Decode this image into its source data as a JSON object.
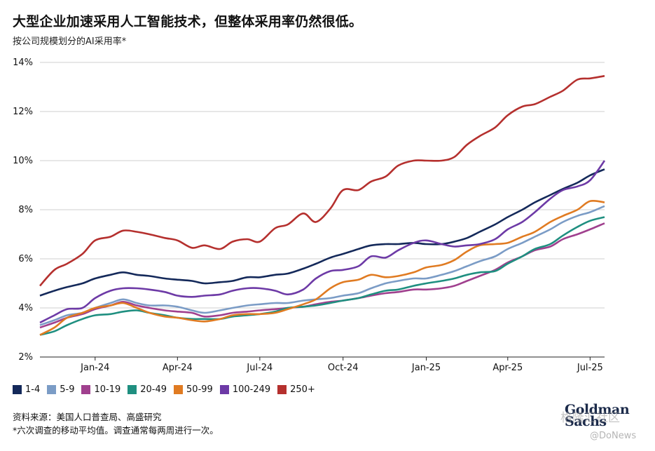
{
  "title": "大型企业加速采用人工智能技术，但整体采用率仍然很低。",
  "subtitle": "按公司规模划分的AI采用率*",
  "source": "资料来源：美国人口普查局、高盛研究",
  "note": "*六次调查的移动平均值。调查通常每两周进行一次。",
  "logo": {
    "line1": "Goldman",
    "line2": "Sachs"
  },
  "watermark": {
    "main": "格隆汇社区",
    "sub": "@DoNews"
  },
  "chart_data": {
    "type": "line",
    "ylim": [
      2,
      14
    ],
    "yticks": [
      2,
      4,
      6,
      8,
      10,
      12,
      14
    ],
    "ytick_labels": [
      "2%",
      "4%",
      "6%",
      "8%",
      "10%",
      "12%",
      "14%"
    ],
    "xlim": [
      "2023-11-15",
      "2025-07-31"
    ],
    "xticks": [
      "2024-01-15",
      "2024-04-15",
      "2024-07-15",
      "2024-10-15",
      "2025-01-15",
      "2025-04-15",
      "2025-07-15"
    ],
    "xtick_labels": [
      "Jan-24",
      "Apr-24",
      "Jul-24",
      "Oct-24",
      "Jan-25",
      "Apr-25",
      "Jul-25"
    ],
    "grid": true,
    "legend_position": "bottom-left",
    "x": [
      "2023-11-15",
      "2023-12-01",
      "2023-12-15",
      "2024-01-01",
      "2024-01-15",
      "2024-02-01",
      "2024-02-15",
      "2024-03-01",
      "2024-03-15",
      "2024-04-01",
      "2024-04-15",
      "2024-05-01",
      "2024-05-15",
      "2024-06-01",
      "2024-06-15",
      "2024-07-01",
      "2024-07-15",
      "2024-08-01",
      "2024-08-15",
      "2024-09-01",
      "2024-09-15",
      "2024-10-01",
      "2024-10-15",
      "2024-11-01",
      "2024-11-15",
      "2024-12-01",
      "2024-12-15",
      "2025-01-01",
      "2025-01-15",
      "2025-02-01",
      "2025-02-15",
      "2025-03-01",
      "2025-03-15",
      "2025-04-01",
      "2025-04-15",
      "2025-05-01",
      "2025-05-15",
      "2025-06-01",
      "2025-06-15",
      "2025-07-01",
      "2025-07-15",
      "2025-07-31"
    ],
    "series": [
      {
        "name": "1-4",
        "color": "#14295a",
        "values": [
          4.5,
          4.7,
          4.85,
          5.0,
          5.2,
          5.35,
          5.45,
          5.35,
          5.3,
          5.2,
          5.15,
          5.1,
          5.0,
          5.05,
          5.1,
          5.25,
          5.25,
          5.35,
          5.4,
          5.6,
          5.8,
          6.05,
          6.2,
          6.4,
          6.55,
          6.6,
          6.6,
          6.65,
          6.6,
          6.6,
          6.7,
          6.85,
          7.1,
          7.4,
          7.7,
          8.0,
          8.3,
          8.6,
          8.85,
          9.1,
          9.4,
          9.65
        ]
      },
      {
        "name": "5-9",
        "color": "#7b9cc6",
        "values": [
          3.3,
          3.5,
          3.7,
          3.8,
          4.0,
          4.2,
          4.35,
          4.2,
          4.1,
          4.1,
          4.05,
          3.9,
          3.8,
          3.9,
          4.0,
          4.1,
          4.15,
          4.2,
          4.2,
          4.3,
          4.35,
          4.4,
          4.5,
          4.6,
          4.8,
          5.0,
          5.1,
          5.2,
          5.2,
          5.35,
          5.5,
          5.7,
          5.9,
          6.1,
          6.4,
          6.65,
          6.9,
          7.2,
          7.5,
          7.75,
          7.9,
          8.15
        ]
      },
      {
        "name": "10-19",
        "color": "#a0408e",
        "values": [
          3.2,
          3.4,
          3.6,
          3.75,
          3.95,
          4.1,
          4.25,
          4.1,
          4.0,
          3.9,
          3.85,
          3.8,
          3.65,
          3.7,
          3.8,
          3.85,
          3.9,
          3.95,
          4.0,
          4.05,
          4.15,
          4.25,
          4.3,
          4.4,
          4.5,
          4.6,
          4.65,
          4.75,
          4.75,
          4.8,
          4.9,
          5.1,
          5.3,
          5.55,
          5.85,
          6.1,
          6.35,
          6.5,
          6.8,
          7.0,
          7.2,
          7.45
        ]
      },
      {
        "name": "20-49",
        "color": "#1f8f80",
        "values": [
          2.9,
          3.05,
          3.3,
          3.55,
          3.7,
          3.75,
          3.85,
          3.9,
          3.8,
          3.7,
          3.6,
          3.55,
          3.55,
          3.55,
          3.65,
          3.7,
          3.75,
          3.85,
          4.0,
          4.05,
          4.1,
          4.2,
          4.3,
          4.4,
          4.55,
          4.7,
          4.75,
          4.9,
          5.0,
          5.1,
          5.2,
          5.35,
          5.45,
          5.5,
          5.8,
          6.1,
          6.4,
          6.6,
          6.95,
          7.3,
          7.55,
          7.7
        ]
      },
      {
        "name": "50-99",
        "color": "#e07b22",
        "values": [
          2.9,
          3.2,
          3.6,
          3.8,
          4.0,
          4.1,
          4.2,
          4.0,
          3.8,
          3.65,
          3.6,
          3.5,
          3.45,
          3.55,
          3.7,
          3.75,
          3.75,
          3.8,
          3.95,
          4.15,
          4.35,
          4.8,
          5.05,
          5.15,
          5.35,
          5.25,
          5.3,
          5.45,
          5.65,
          5.75,
          5.95,
          6.3,
          6.55,
          6.6,
          6.65,
          6.9,
          7.1,
          7.5,
          7.75,
          8.0,
          8.35,
          8.3
        ]
      },
      {
        "name": "100-249",
        "color": "#6d3aa6",
        "values": [
          3.4,
          3.7,
          3.95,
          4.0,
          4.4,
          4.7,
          4.8,
          4.8,
          4.75,
          4.65,
          4.5,
          4.45,
          4.5,
          4.55,
          4.7,
          4.8,
          4.8,
          4.7,
          4.55,
          4.75,
          5.2,
          5.5,
          5.55,
          5.7,
          6.1,
          6.05,
          6.35,
          6.65,
          6.75,
          6.6,
          6.5,
          6.55,
          6.6,
          6.8,
          7.2,
          7.5,
          7.9,
          8.45,
          8.8,
          8.95,
          9.2,
          10.0
        ]
      },
      {
        "name": "250+",
        "color": "#b5302e",
        "values": [
          4.9,
          5.55,
          5.8,
          6.2,
          6.75,
          6.9,
          7.15,
          7.1,
          7.0,
          6.85,
          6.75,
          6.45,
          6.55,
          6.4,
          6.7,
          6.8,
          6.7,
          7.25,
          7.4,
          7.85,
          7.5,
          8.05,
          8.8,
          8.8,
          9.15,
          9.35,
          9.8,
          10.0,
          10.0,
          10.0,
          10.15,
          10.65,
          11.0,
          11.35,
          11.85,
          12.2,
          12.3,
          12.6,
          12.85,
          13.3,
          13.35,
          13.45
        ]
      }
    ]
  }
}
